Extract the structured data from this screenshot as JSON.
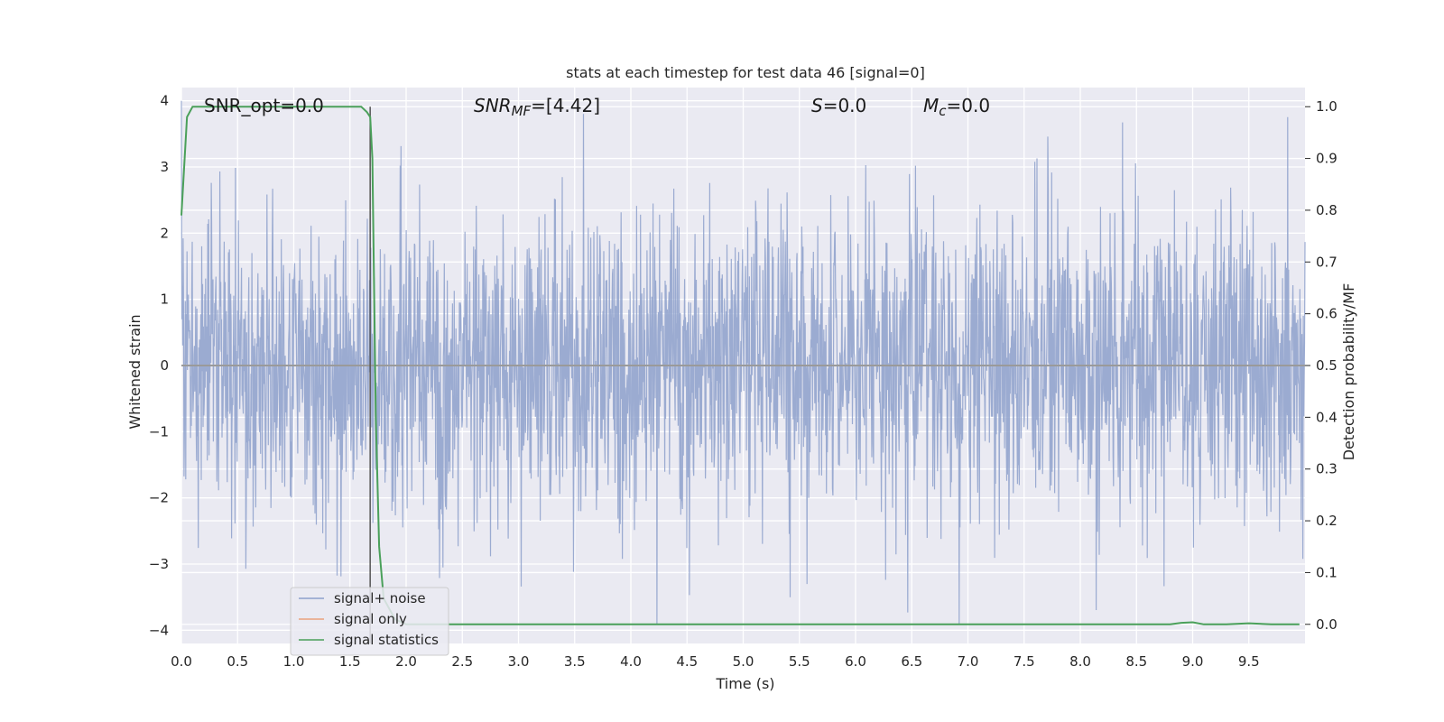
{
  "chart_data": {
    "type": "line",
    "title": "stats at each timestep for test data 46 [signal=0]",
    "xlabel": "Time (s)",
    "ylabel_left": "Whitened strain",
    "ylabel_right": "Detection probability/MF",
    "xlim": [
      0.0,
      10.0
    ],
    "ylim_left": [
      -4.2,
      4.2
    ],
    "ylim_right": [
      -0.037,
      1.037
    ],
    "x_ticks": [
      "0.0",
      "0.5",
      "1.0",
      "1.5",
      "2.0",
      "2.5",
      "3.0",
      "3.5",
      "4.0",
      "4.5",
      "5.0",
      "5.5",
      "6.0",
      "6.5",
      "7.0",
      "7.5",
      "8.0",
      "8.5",
      "9.0",
      "9.5"
    ],
    "y_ticks_left": [
      "4",
      "3",
      "2",
      "1",
      "0",
      "−1",
      "−2",
      "−3",
      "−4"
    ],
    "y_ticks_right": [
      "1.0",
      "0.9",
      "0.8",
      "0.7",
      "0.6",
      "0.5",
      "0.4",
      "0.3",
      "0.2",
      "0.1",
      "0.0"
    ],
    "grid": true,
    "legend_position": "lower-left",
    "annotations": {
      "snr_opt": "SNR_opt=0.0",
      "snr_mf_main": "SNR",
      "snr_mf_sub": "MF",
      "snr_mf_value": "=[4.42]",
      "s_main": "S",
      "s_value": "=0.0",
      "mc_main": "M",
      "mc_sub": "c",
      "mc_value": "=0.0"
    },
    "vline_x": 1.68,
    "series": [
      {
        "name": "signal+ noise",
        "color": "#8da0cb",
        "axis": "left",
        "description_values": "noise envelope approx ±2.5, peak excursions to about +4.0 and −3.9",
        "envelope_peak_max": 4.0,
        "envelope_peak_min": -3.9
      },
      {
        "name": "signal only",
        "color": "#e9a17c",
        "axis": "left",
        "x": [
          0.0,
          10.0
        ],
        "y": [
          0.0,
          0.0
        ]
      },
      {
        "name": "signal statistics",
        "color": "#4aa05a",
        "axis": "right",
        "x": [
          0.0,
          0.05,
          0.1,
          0.2,
          0.4,
          0.8,
          1.2,
          1.6,
          1.65,
          1.68,
          1.7,
          1.73,
          1.76,
          1.8,
          1.9,
          2.0,
          3.0,
          4.0,
          5.0,
          6.0,
          7.0,
          8.0,
          8.5,
          8.8,
          8.9,
          9.0,
          9.1,
          9.3,
          9.5,
          9.7,
          9.95
        ],
        "y": [
          0.79,
          0.98,
          1.0,
          1.0,
          1.0,
          1.0,
          1.0,
          1.0,
          0.99,
          0.98,
          0.9,
          0.4,
          0.15,
          0.05,
          0.01,
          0.0,
          0.0,
          0.0,
          0.0,
          0.0,
          0.0,
          0.0,
          0.0,
          0.0,
          0.003,
          0.004,
          0.0,
          0.0,
          0.002,
          0.0,
          0.0
        ]
      }
    ]
  }
}
